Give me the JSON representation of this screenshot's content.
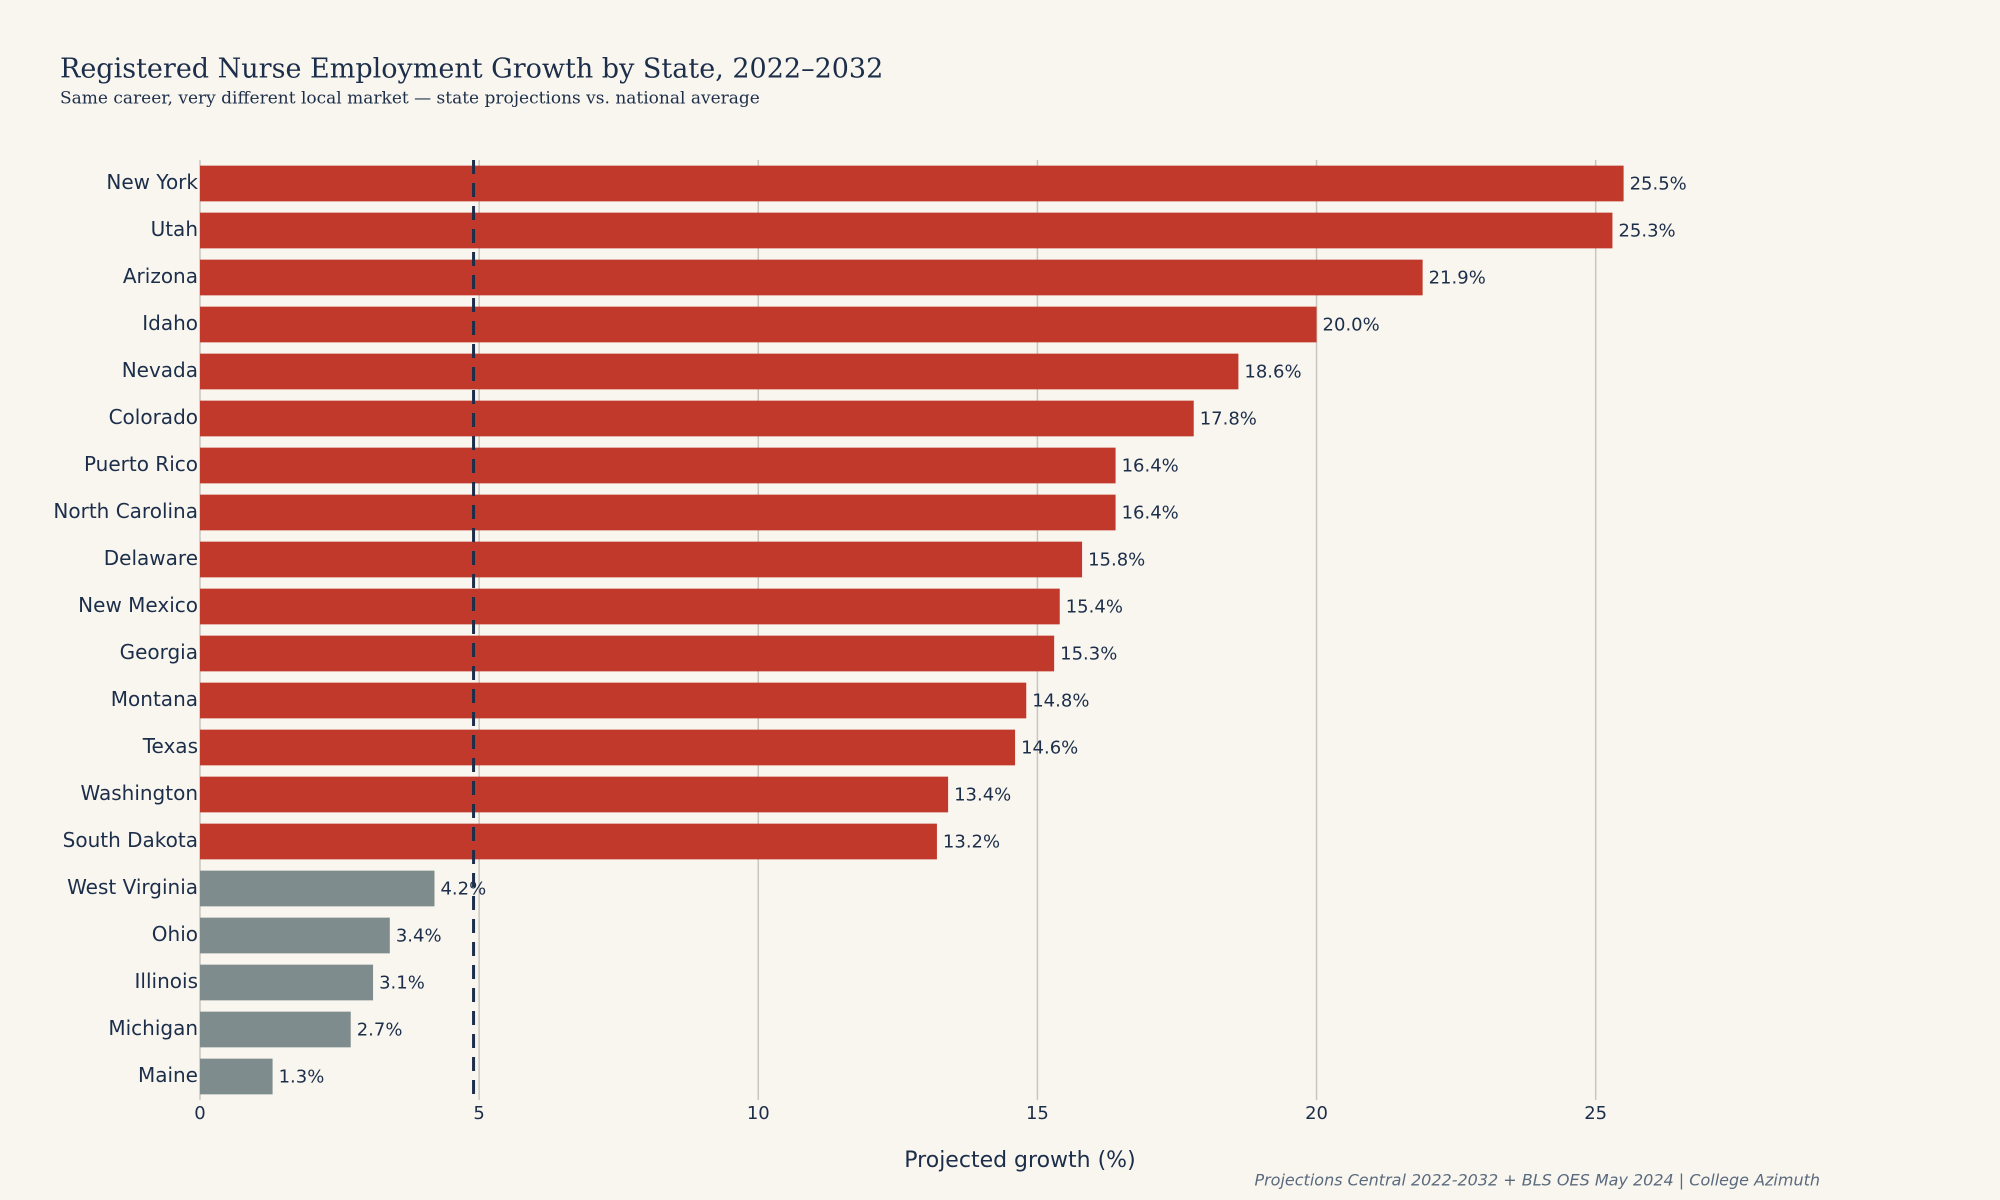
{
  "chart_data": {
    "type": "bar",
    "orientation": "horizontal",
    "title": "Registered Nurse Employment Growth by State, 2022–2032",
    "subtitle": "Same career, very different local market — state projections vs. national average",
    "x_label": "Projected growth (%)",
    "source": "Projections Central 2022-2032 + BLS OES May 2024 | College Azimuth",
    "categories": [
      "New York",
      "Utah",
      "Arizona",
      "Idaho",
      "Nevada",
      "Colorado",
      "Puerto Rico",
      "North Carolina",
      "Delaware",
      "New Mexico",
      "Georgia",
      "Montana",
      "Texas",
      "Washington",
      "South Dakota",
      "West Virginia",
      "Ohio",
      "Illinois",
      "Michigan",
      "Maine"
    ],
    "values": [
      25.5,
      25.3,
      21.9,
      20.0,
      18.6,
      17.8,
      16.4,
      16.4,
      15.8,
      15.4,
      15.3,
      14.8,
      14.6,
      13.4,
      13.2,
      4.2,
      3.4,
      3.1,
      2.7,
      1.3
    ],
    "value_labels": [
      "25.5%",
      "25.3%",
      "21.9%",
      "20.0%",
      "18.6%",
      "17.8%",
      "16.4%",
      "16.4%",
      "15.8%",
      "15.4%",
      "15.3%",
      "14.8%",
      "14.6%",
      "13.4%",
      "13.2%",
      "4.2%",
      "3.4%",
      "3.1%",
      "2.7%",
      "1.3%"
    ],
    "colors": [
      "#c0392b",
      "#c0392b",
      "#c0392b",
      "#c0392b",
      "#c0392b",
      "#c0392b",
      "#c0392b",
      "#c0392b",
      "#c0392b",
      "#c0392b",
      "#c0392b",
      "#c0392b",
      "#c0392b",
      "#c0392b",
      "#c0392b",
      "#7f8c8d",
      "#7f8c8d",
      "#7f8c8d",
      "#7f8c8d",
      "#7f8c8d"
    ],
    "reference_line": 4.9,
    "xlim": [
      0,
      29
    ],
    "xticks": [
      0,
      5,
      10,
      15,
      20,
      25
    ],
    "grid": true
  }
}
